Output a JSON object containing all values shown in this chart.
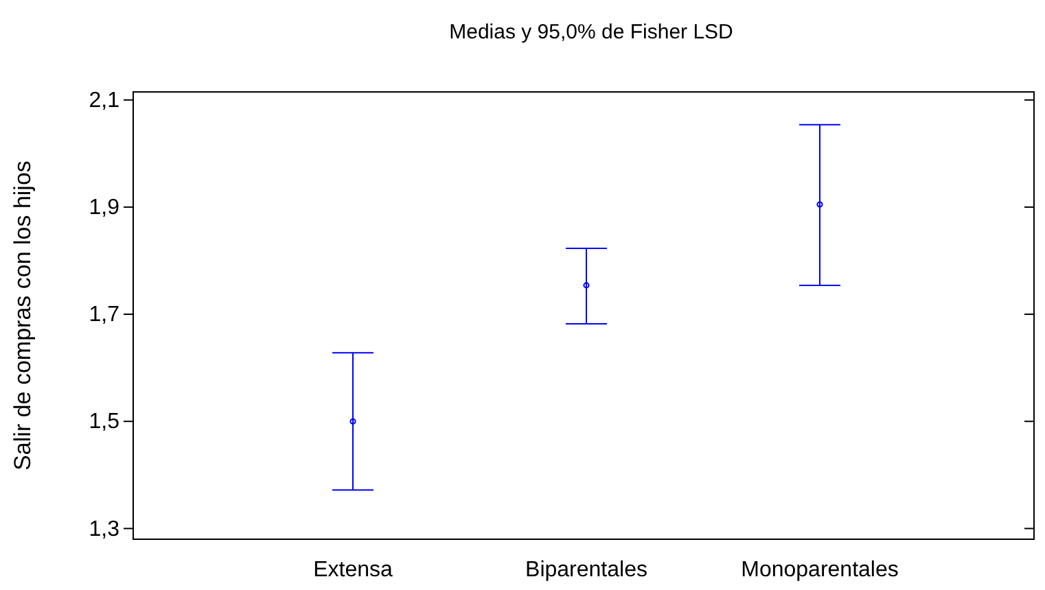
{
  "chart_data": {
    "type": "scatter",
    "title": "Medias y 95,0% de Fisher LSD",
    "ylabel": "Salir de compras con los hijos",
    "categories": [
      "Extensa",
      "Biparentales",
      "Monoparentales"
    ],
    "series": [
      {
        "color": "#0000ff",
        "values": [
          1.5,
          1.754,
          1.905
        ],
        "errors": [
          [
            1.372,
            1.628
          ],
          [
            1.682,
            1.823
          ],
          [
            1.754,
            2.054
          ]
        ]
      }
    ],
    "ylim": [
      1.28,
      2.115
    ],
    "yticks": [
      {
        "value": 1.3,
        "label": "1,3"
      },
      {
        "value": 1.5,
        "label": "1,5"
      },
      {
        "value": 1.7,
        "label": "1,7"
      },
      {
        "value": 1.9,
        "label": "1,9"
      },
      {
        "value": 2.1,
        "label": "2,1"
      }
    ],
    "marker": "circle"
  }
}
